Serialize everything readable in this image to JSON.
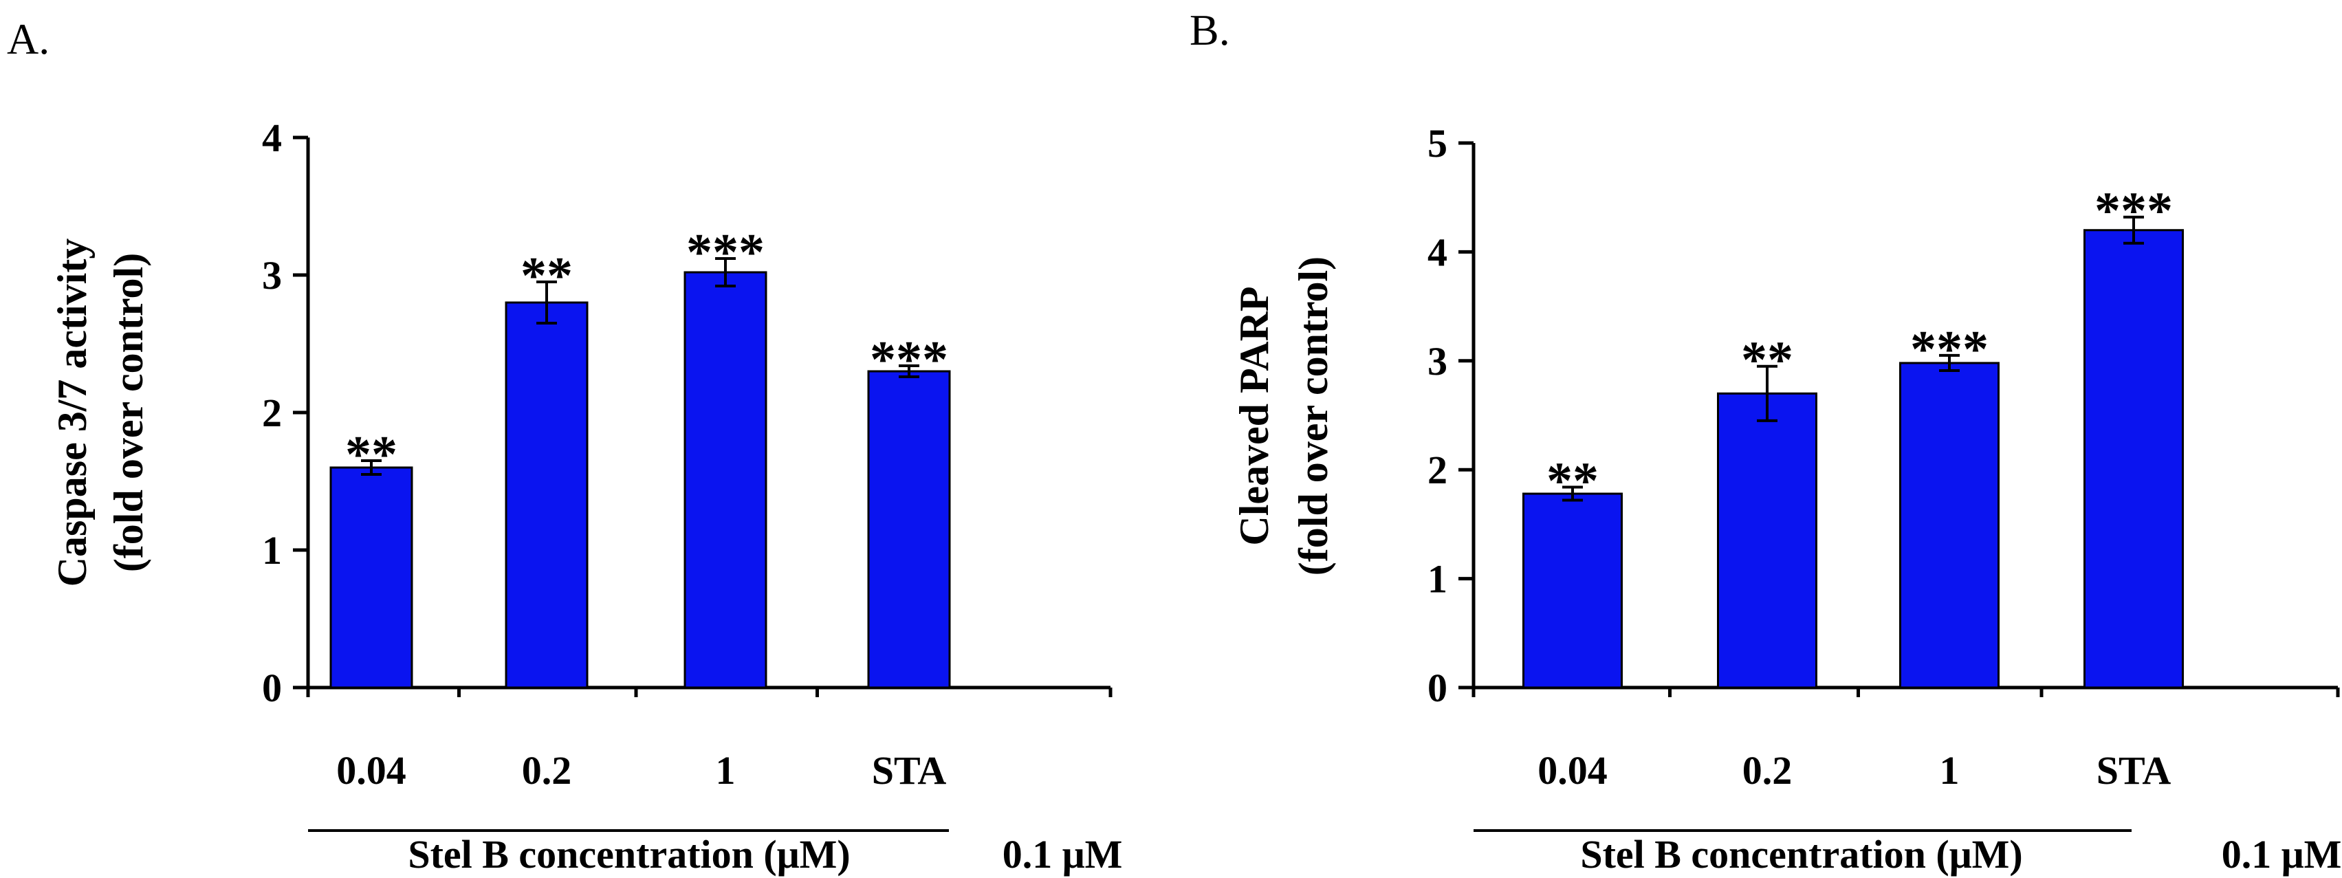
{
  "chart_data": [
    {
      "type": "bar",
      "panel_label": "A.",
      "ylabel": [
        "Caspase 3/7 activity",
        "(fold over control)"
      ],
      "ylim": [
        0,
        4
      ],
      "yticks": [
        0,
        1,
        2,
        3,
        4
      ],
      "categories": [
        "0.04",
        "0.2",
        "1",
        "STA"
      ],
      "extra_label": "0.1 μM",
      "group_label": "Stel B concentration (μM)",
      "values": [
        1.6,
        2.8,
        3.02,
        2.3
      ],
      "errors": [
        0.05,
        0.15,
        0.1,
        0.04
      ],
      "significance": [
        "**",
        "**",
        "***",
        "***"
      ],
      "bar_color": "#0a14f0"
    },
    {
      "type": "bar",
      "panel_label": "B.",
      "ylabel": [
        "Cleaved PARP",
        "(fold over control)"
      ],
      "ylim": [
        0,
        5
      ],
      "yticks": [
        0,
        1,
        2,
        3,
        4,
        5
      ],
      "categories": [
        "0.04",
        "0.2",
        "1",
        "STA"
      ],
      "extra_label": "0.1 μM",
      "group_label": "Stel B concentration (μM)",
      "values": [
        1.78,
        2.7,
        2.98,
        4.2
      ],
      "errors": [
        0.06,
        0.25,
        0.07,
        0.12
      ],
      "significance": [
        "**",
        "**",
        "***",
        "***"
      ],
      "bar_color": "#0a14f0"
    }
  ]
}
